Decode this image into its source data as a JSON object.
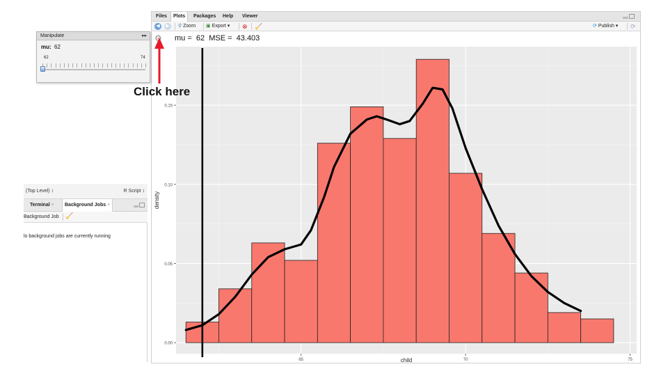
{
  "left_pane": {
    "scope": "(Top Level) ↕",
    "script_type": "R Script ↕",
    "tabs": [
      {
        "label": "Terminal",
        "close": "×"
      },
      {
        "label": "Background Jobs",
        "close": "×"
      }
    ],
    "toolbar_label": "Background Job",
    "message": "lo background jobs are currently running"
  },
  "manipulate": {
    "title": "Manipulate",
    "collapse_symbol": "▸▸",
    "param_label": "mu:",
    "param_value": "62",
    "min_label": "62",
    "max_label": "74",
    "slider_fraction": 0.0
  },
  "callout": {
    "text": "Click here",
    "color": "#e8192c"
  },
  "plots_pane": {
    "tabs": [
      "Files",
      "Plots",
      "Packages",
      "Help",
      "Viewer"
    ],
    "active_tab": "Plots",
    "toolbar": {
      "zoom": "Zoom",
      "export": "Export ▾",
      "publish": "Publish ▾"
    },
    "readout": "mu =  62  MSE =  43.403"
  },
  "chart_data": {
    "type": "bar",
    "subtype": "histogram_with_density",
    "xlabel": "child",
    "ylabel": "density",
    "xlim": [
      61.2,
      75.2
    ],
    "ylim": [
      -0.007,
      0.187
    ],
    "xticks": [
      65,
      70,
      75
    ],
    "yticks": [
      0.0,
      0.05,
      0.1,
      0.15
    ],
    "ytick_labels": [
      "0.00",
      "0.05",
      "0.10",
      "0.15"
    ],
    "bar_fill": "#f8786d",
    "bar_stroke": "#222222",
    "panel_bg": "#ebebeb",
    "grid": true,
    "bins": [
      {
        "x0": 61.5,
        "x1": 62.5,
        "y": 0.013
      },
      {
        "x0": 62.5,
        "x1": 63.5,
        "y": 0.034
      },
      {
        "x0": 63.5,
        "x1": 64.5,
        "y": 0.063
      },
      {
        "x0": 64.5,
        "x1": 65.5,
        "y": 0.052
      },
      {
        "x0": 65.5,
        "x1": 66.5,
        "y": 0.126
      },
      {
        "x0": 66.5,
        "x1": 67.5,
        "y": 0.149
      },
      {
        "x0": 67.5,
        "x1": 68.5,
        "y": 0.129
      },
      {
        "x0": 68.5,
        "x1": 69.5,
        "y": 0.179
      },
      {
        "x0": 69.5,
        "x1": 70.5,
        "y": 0.107
      },
      {
        "x0": 70.5,
        "x1": 71.5,
        "y": 0.069
      },
      {
        "x0": 71.5,
        "x1": 72.5,
        "y": 0.044
      },
      {
        "x0": 72.5,
        "x1": 73.5,
        "y": 0.019
      },
      {
        "x0": 73.5,
        "x1": 74.5,
        "y": 0.015
      }
    ],
    "density_curve": {
      "x": [
        61.5,
        62.0,
        62.5,
        63.0,
        63.5,
        64.0,
        64.5,
        65.0,
        65.3,
        65.7,
        66.0,
        66.5,
        67.0,
        67.3,
        67.6,
        68.0,
        68.3,
        68.7,
        69.0,
        69.3,
        69.6,
        70.0,
        70.5,
        71.0,
        71.5,
        72.0,
        72.5,
        73.0,
        73.5
      ],
      "y": [
        0.008,
        0.011,
        0.018,
        0.029,
        0.043,
        0.054,
        0.059,
        0.062,
        0.071,
        0.092,
        0.111,
        0.132,
        0.141,
        0.143,
        0.141,
        0.138,
        0.14,
        0.151,
        0.161,
        0.16,
        0.148,
        0.123,
        0.097,
        0.074,
        0.056,
        0.042,
        0.032,
        0.025,
        0.02
      ],
      "color": "#000000"
    },
    "vline_x": 62
  }
}
